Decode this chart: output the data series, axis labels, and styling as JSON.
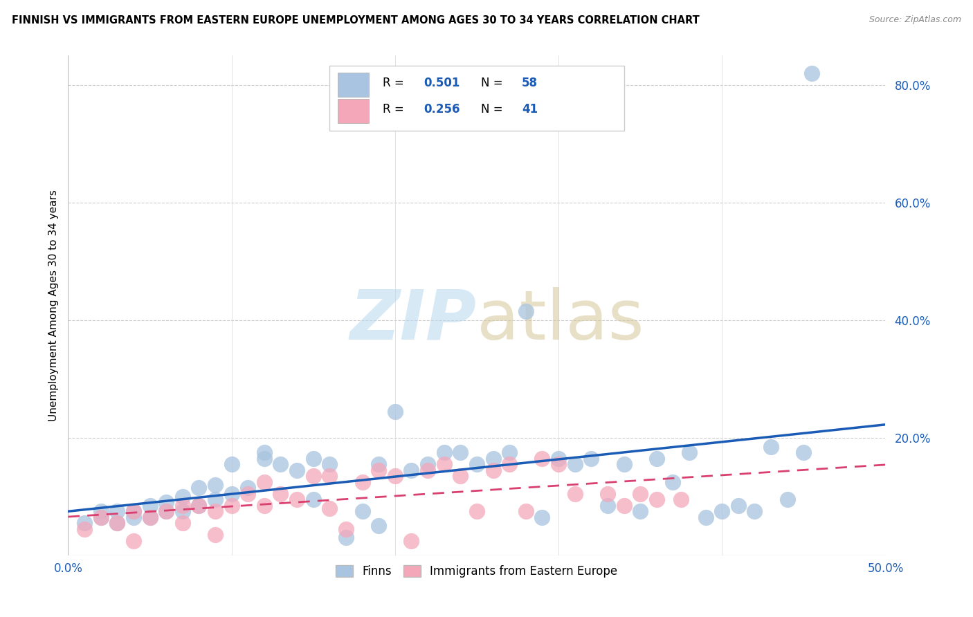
{
  "title": "FINNISH VS IMMIGRANTS FROM EASTERN EUROPE UNEMPLOYMENT AMONG AGES 30 TO 34 YEARS CORRELATION CHART",
  "source": "Source: ZipAtlas.com",
  "ylabel": "Unemployment Among Ages 30 to 34 years",
  "xlim": [
    0.0,
    0.5
  ],
  "ylim": [
    0.0,
    0.85
  ],
  "yticks": [
    0.0,
    0.2,
    0.4,
    0.6,
    0.8
  ],
  "ytick_labels": [
    "",
    "20.0%",
    "40.0%",
    "60.0%",
    "80.0%"
  ],
  "finns_color": "#a8c4e0",
  "immig_color": "#f4a7b9",
  "finns_line_color": "#1a5cb5",
  "immig_line_color": "#d94070",
  "tick_color": "#1a5cb5",
  "finns_x": [
    0.01,
    0.02,
    0.02,
    0.03,
    0.03,
    0.04,
    0.04,
    0.05,
    0.05,
    0.06,
    0.06,
    0.07,
    0.07,
    0.08,
    0.08,
    0.09,
    0.09,
    0.1,
    0.1,
    0.11,
    0.12,
    0.12,
    0.13,
    0.14,
    0.15,
    0.15,
    0.16,
    0.17,
    0.18,
    0.19,
    0.19,
    0.2,
    0.21,
    0.22,
    0.23,
    0.24,
    0.25,
    0.26,
    0.27,
    0.28,
    0.29,
    0.3,
    0.31,
    0.32,
    0.33,
    0.34,
    0.35,
    0.36,
    0.37,
    0.38,
    0.39,
    0.4,
    0.41,
    0.42,
    0.43,
    0.44,
    0.45,
    0.455
  ],
  "finns_y": [
    0.055,
    0.065,
    0.075,
    0.055,
    0.075,
    0.065,
    0.075,
    0.065,
    0.085,
    0.075,
    0.09,
    0.075,
    0.1,
    0.085,
    0.115,
    0.095,
    0.12,
    0.105,
    0.155,
    0.115,
    0.165,
    0.175,
    0.155,
    0.145,
    0.095,
    0.165,
    0.155,
    0.03,
    0.075,
    0.05,
    0.155,
    0.245,
    0.145,
    0.155,
    0.175,
    0.175,
    0.155,
    0.165,
    0.175,
    0.415,
    0.065,
    0.165,
    0.155,
    0.165,
    0.085,
    0.155,
    0.075,
    0.165,
    0.125,
    0.175,
    0.065,
    0.075,
    0.085,
    0.075,
    0.185,
    0.095,
    0.175,
    0.82
  ],
  "immig_x": [
    0.01,
    0.02,
    0.03,
    0.04,
    0.04,
    0.05,
    0.06,
    0.07,
    0.07,
    0.08,
    0.09,
    0.09,
    0.1,
    0.11,
    0.12,
    0.12,
    0.13,
    0.14,
    0.15,
    0.16,
    0.16,
    0.17,
    0.18,
    0.19,
    0.2,
    0.21,
    0.22,
    0.23,
    0.24,
    0.25,
    0.26,
    0.27,
    0.28,
    0.29,
    0.3,
    0.31,
    0.33,
    0.34,
    0.35,
    0.36,
    0.375
  ],
  "immig_y": [
    0.045,
    0.065,
    0.055,
    0.075,
    0.025,
    0.065,
    0.075,
    0.055,
    0.085,
    0.085,
    0.075,
    0.035,
    0.085,
    0.105,
    0.085,
    0.125,
    0.105,
    0.095,
    0.135,
    0.08,
    0.135,
    0.045,
    0.125,
    0.145,
    0.135,
    0.025,
    0.145,
    0.155,
    0.135,
    0.075,
    0.145,
    0.155,
    0.075,
    0.165,
    0.155,
    0.105,
    0.105,
    0.085,
    0.105,
    0.095,
    0.095
  ],
  "finns_slope": 0.6,
  "finns_intercept": 0.005,
  "immig_slope": 0.08,
  "immig_intercept": 0.075
}
